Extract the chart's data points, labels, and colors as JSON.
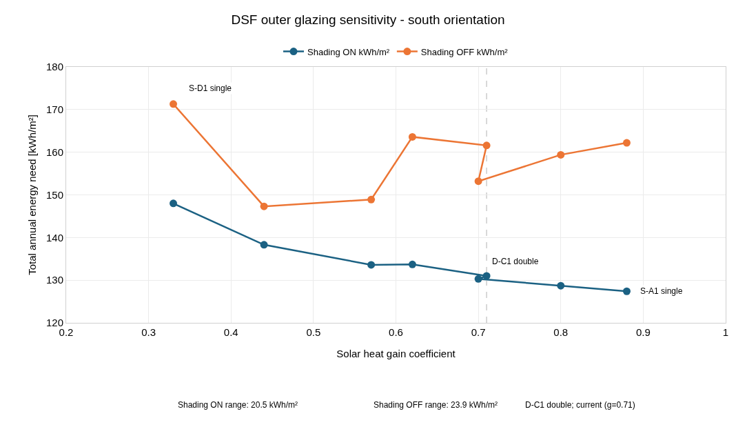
{
  "chart_data": {
    "type": "line",
    "title": "DSF outer glazing sensitivity - south orientation",
    "xlabel": "Solar heat gain coefficient",
    "ylabel": "Total annual energy need [kWh/m²]",
    "x": [
      0.33,
      0.44,
      0.57,
      0.62,
      0.71,
      0.7,
      0.8,
      0.88
    ],
    "series": [
      {
        "name": "Shading ON kWh/m²",
        "color": "#1b6183",
        "values": [
          148.0,
          138.3,
          133.6,
          133.7,
          131.0,
          130.3,
          128.7,
          127.4
        ]
      },
      {
        "name": "Shading OFF kWh/m²",
        "color": "#ec7534",
        "values": [
          171.3,
          147.3,
          148.9,
          163.6,
          161.6,
          153.2,
          159.4,
          162.2
        ]
      }
    ],
    "xlim": [
      0.2,
      1
    ],
    "xticks": [
      0.2,
      0.3,
      0.4,
      0.5,
      0.6,
      0.7,
      0.8,
      0.9,
      1
    ],
    "ylim": [
      120,
      180
    ],
    "yticks": [
      120,
      130,
      140,
      150,
      160,
      170,
      180
    ],
    "grid": true,
    "legend": "top",
    "marker": "circle",
    "line_style": "solid",
    "ref_lines": [
      {
        "axis": "x",
        "value": 0.71,
        "color": "#cccccc",
        "line_style": "dashed"
      }
    ],
    "annotations": [
      {
        "text": "S-D1 single",
        "x": 0.33,
        "y": 171.3
      },
      {
        "text": "D-C1 double",
        "x": 0.71,
        "y": 131.0
      },
      {
        "text": "S-A1 single",
        "x": 0.88,
        "y": 127.4
      },
      "Shading ON range: 20.5 kWh/m²",
      "Shading OFF range: 23.9 kWh/m²",
      "D-C1 double; current (g=0.71)"
    ]
  }
}
